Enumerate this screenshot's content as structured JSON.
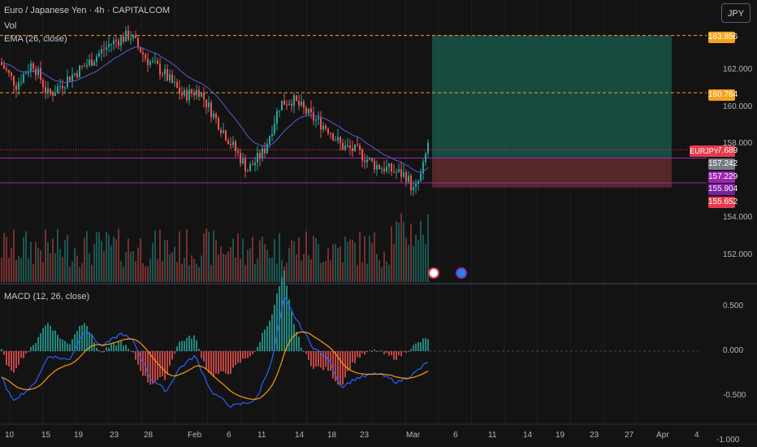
{
  "header": {
    "symbol_line": "Euro / Japanese Yen · 4h · CAPITALCOM",
    "vol_label": "Vol",
    "ema_label": "EMA (26, close)",
    "macd_label": "MACD (12, 26, close)"
  },
  "currency_button": "JPY",
  "symbol_tag": "EURJPY",
  "price_axis": [
    "162.000",
    "160.000",
    "158.000",
    "154.000",
    "152.000"
  ],
  "price_tags": [
    {
      "label": "163.856",
      "value": 163.856,
      "color": "#f7a21b"
    },
    {
      "label": "160.764",
      "value": 160.764,
      "color": "#f7a21b"
    },
    {
      "label": "157.689",
      "value": 157.689,
      "color": "#e83a4e"
    },
    {
      "label": "157.242",
      "value": 157.242,
      "color": "#787b86"
    },
    {
      "label": "157.229",
      "value": 157.229,
      "color": "#9c27b0"
    },
    {
      "label": "155.904",
      "value": 155.904,
      "color": "#7b1fa2"
    },
    {
      "label": "155.652",
      "value": 155.652,
      "color": "#e83a4e"
    }
  ],
  "macd_axis": [
    "0.500",
    "0.000",
    "-0.500",
    "-1.000"
  ],
  "time_axis": [
    "10",
    "15",
    "19",
    "23",
    "28",
    "Feb",
    "6",
    "11",
    "14",
    "18",
    "23",
    "Mar",
    "6",
    "11",
    "14",
    "19",
    "23",
    "27",
    "Apr",
    "4"
  ],
  "colors": {
    "up": "#26a69a",
    "down": "#ef5350",
    "ema": "#5b5bd6",
    "macd_line": "#2962ff",
    "signal_line": "#ff9800",
    "target_zone": "#1b5e4f",
    "stop_zone": "#5c2a2e",
    "level_line": "#f7a21b",
    "horizontal_purple": "#9c27b0"
  }
}
